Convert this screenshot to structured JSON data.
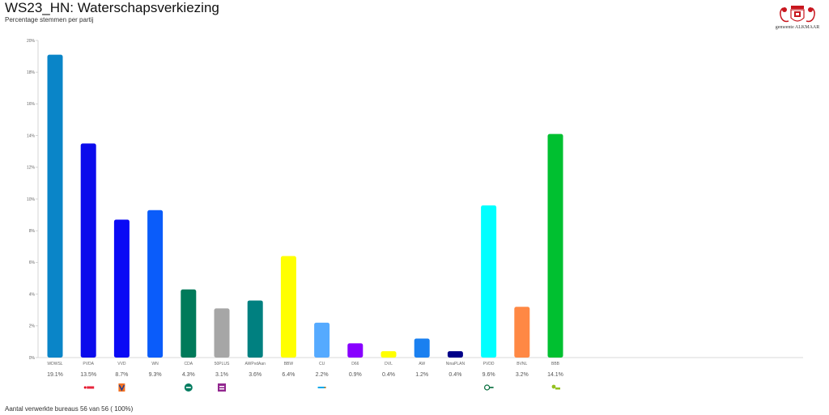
{
  "header": {
    "title": "WS23_HN: Waterschapsverkiezing",
    "subtitle": "Percentage stemmen per partij"
  },
  "logo": {
    "icon": "gemeente-alkmaar-crest-icon",
    "text": "gemeente ALKMAAR"
  },
  "footer": {
    "text": "Aantal verwerkte bureaus 56 van 56 ( 100%)"
  },
  "chart_data": {
    "type": "bar",
    "categories": [
      "WDWSL",
      "PVDA",
      "VVD",
      "WN",
      "CDA",
      "50PLUS",
      "AWPvdAan",
      "BBW",
      "CU",
      "D66",
      "DVL",
      "AW",
      "NinaPLAN",
      "PVDD",
      "BVNL",
      "BBB"
    ],
    "values": [
      19.1,
      13.5,
      8.7,
      9.3,
      4.3,
      3.1,
      3.6,
      6.4,
      2.2,
      0.9,
      0.4,
      1.2,
      0.4,
      9.6,
      3.2,
      14.1
    ],
    "value_labels": [
      "19.1%",
      "13.5%",
      "8.7%",
      "9.3%",
      "4.3%",
      "3.1%",
      "3.6%",
      "6.4%",
      "2.2%",
      "0.9%",
      "0.4%",
      "1.2%",
      "0.4%",
      "9.6%",
      "3.2%",
      "14.1%"
    ],
    "colors": [
      "#0a85c8",
      "#0b0bec",
      "#0a0af5",
      "#0a5cfa",
      "#007a5a",
      "#a6a6a6",
      "#008080",
      "#ffff00",
      "#55aaff",
      "#8800ff",
      "#ffff00",
      "#1a80f0",
      "#000088",
      "#00ffff",
      "#ff8844",
      "#00c030"
    ],
    "logo_icons": [
      "",
      "pvda-logo-icon",
      "vvd-logo-icon",
      "",
      "cda-logo-icon",
      "50plus-logo-icon",
      "",
      "",
      "cu-logo-icon",
      "",
      "",
      "",
      "",
      "pvdd-logo-icon",
      "",
      "bbb-logo-icon"
    ],
    "ylim": [
      0,
      20
    ],
    "yticks": [
      0,
      2,
      4,
      6,
      8,
      10,
      12,
      14,
      16,
      18,
      20
    ],
    "ytick_labels": [
      "0%",
      "2%",
      "4%",
      "6%",
      "8%",
      "10%",
      "12%",
      "14%",
      "16%",
      "18%",
      "20%"
    ],
    "grid": false,
    "legend": "none",
    "xlabel": "",
    "ylabel": ""
  }
}
